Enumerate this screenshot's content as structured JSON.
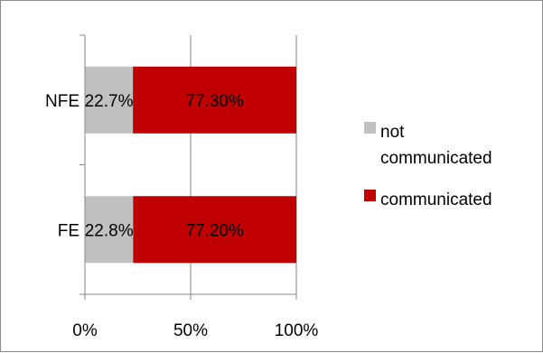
{
  "chart_data": {
    "type": "bar",
    "orientation": "horizontal",
    "stacked": "percent",
    "categories": [
      "NFE",
      "FE"
    ],
    "series": [
      {
        "name": "not communicated",
        "values": [
          22.7,
          22.8
        ],
        "labels": [
          "22.7%",
          "22.8%"
        ],
        "color": "#c0c0c0"
      },
      {
        "name": "communicated",
        "values": [
          77.3,
          77.2
        ],
        "labels": [
          "77.30%",
          "77.20%"
        ],
        "color": "#c00000"
      }
    ],
    "x_ticks": [
      "0%",
      "50%",
      "100%"
    ],
    "xlim": [
      0,
      100
    ],
    "grid": "vertical major gridlines",
    "legend": {
      "position": "right",
      "entries": [
        {
          "lines": [
            "not",
            "communicated"
          ],
          "color": "#c0c0c0"
        },
        {
          "lines": [
            "communicated"
          ],
          "color": "#c00000"
        }
      ]
    },
    "title": "",
    "xlabel": "",
    "ylabel": ""
  }
}
